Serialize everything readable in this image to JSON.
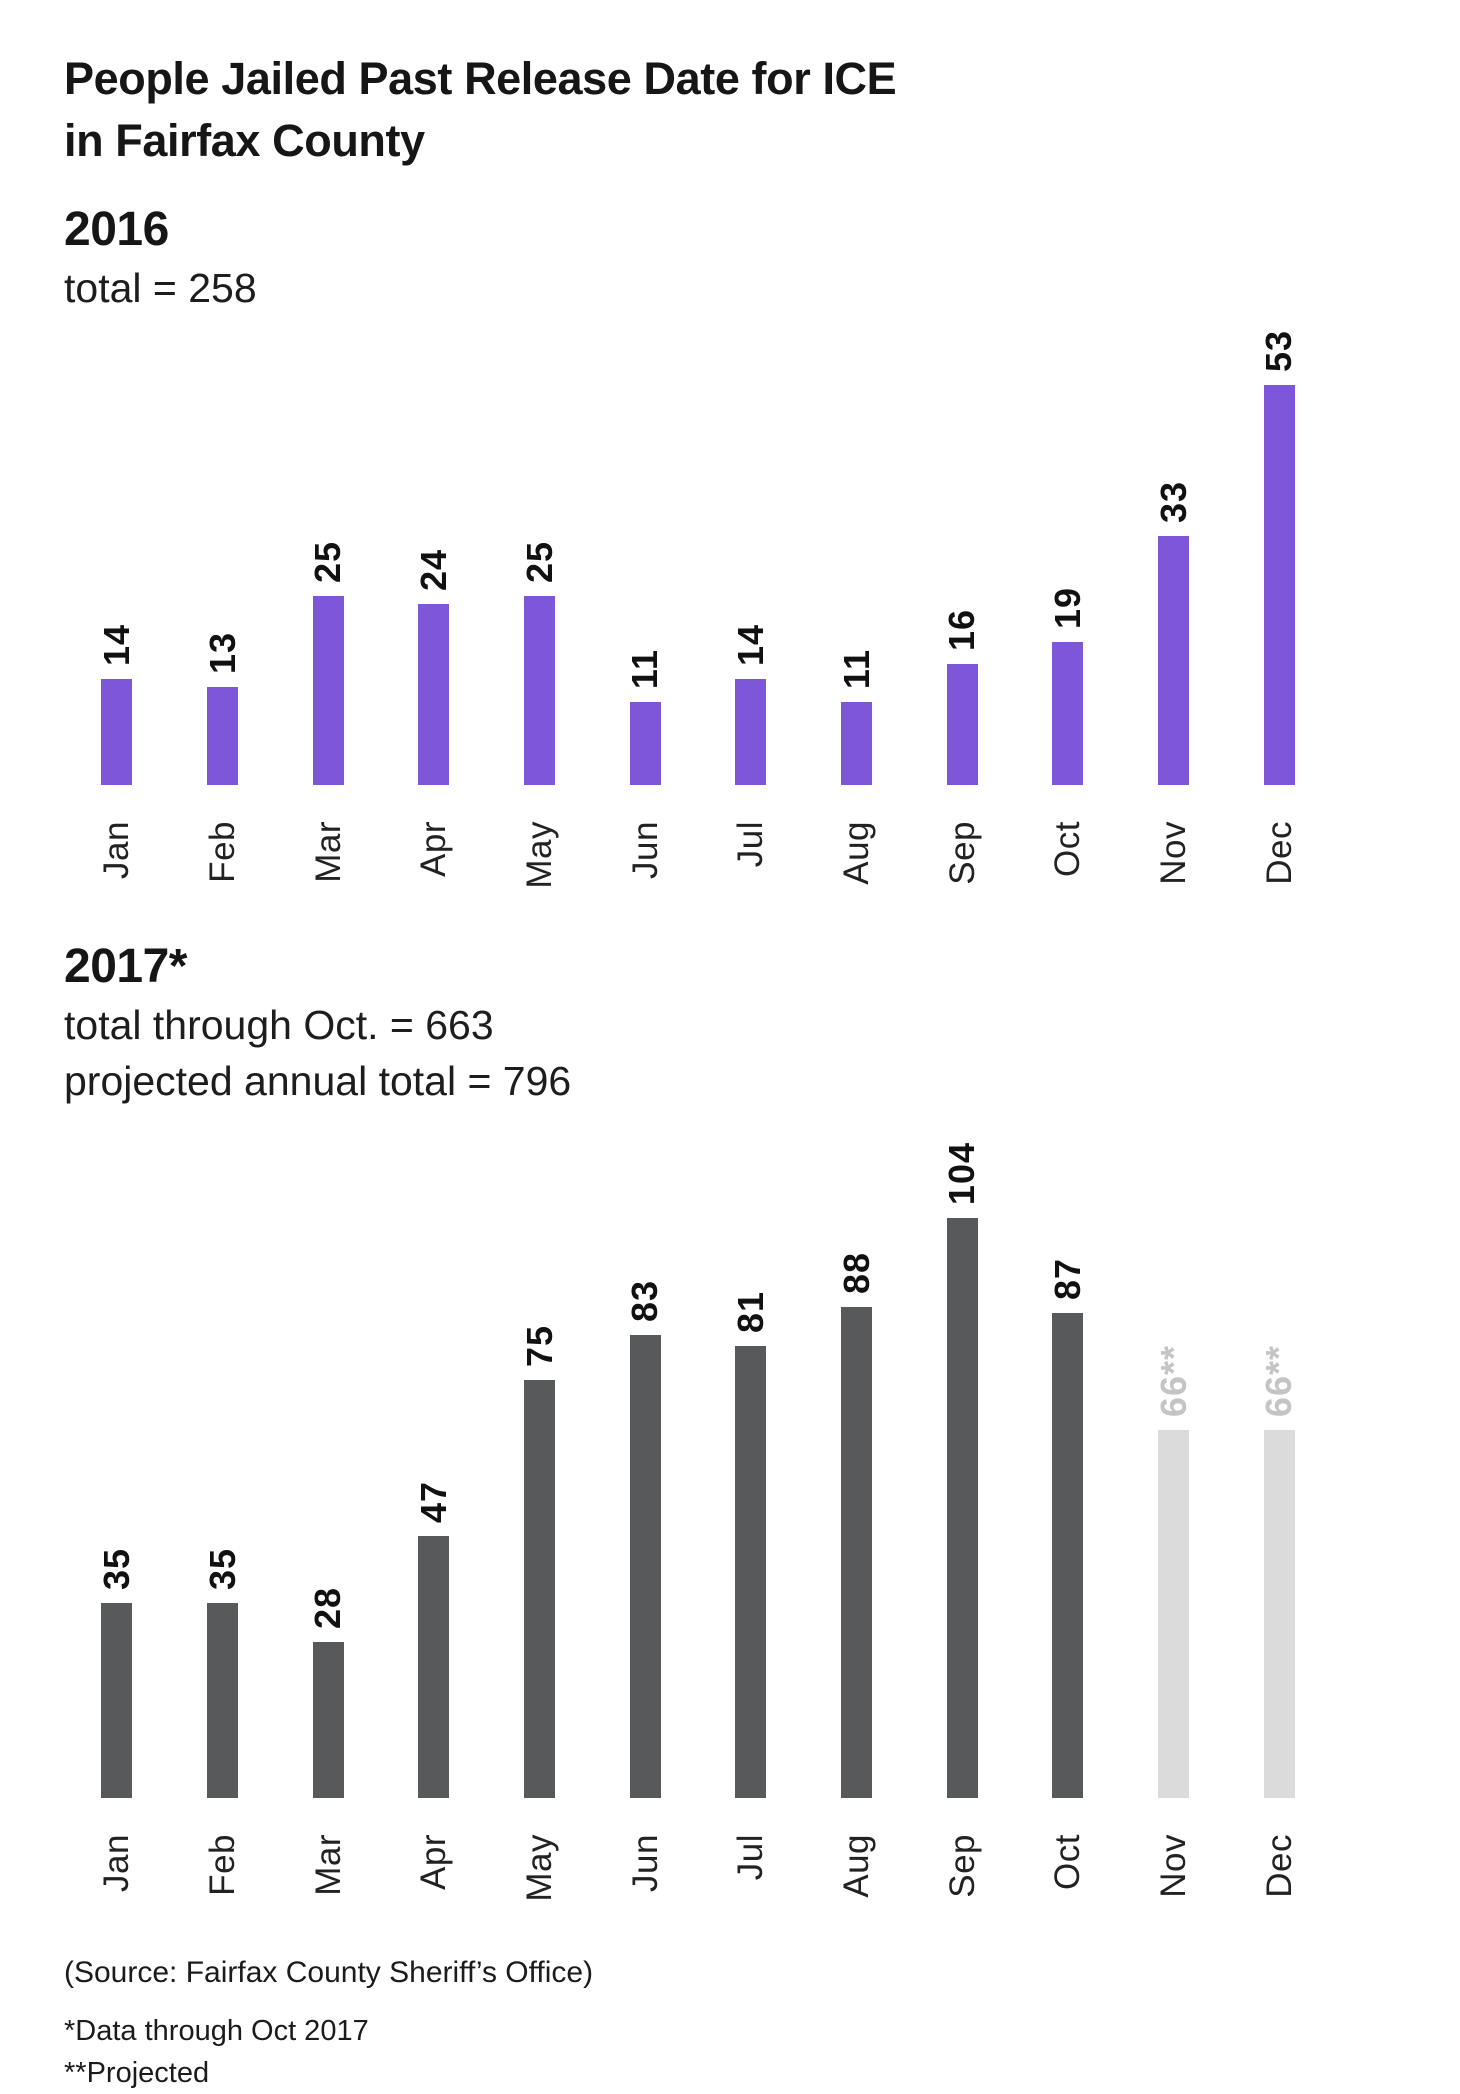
{
  "page": {
    "title_lines": [
      "People Jailed Past Release Date for ICE",
      "in Fairfax County"
    ],
    "footer": {
      "source": "(Source: Fairfax County Sheriff’s Office)",
      "note_data": "*Data through Oct 2017",
      "note_projected": "**Projected"
    }
  },
  "chart_data": [
    {
      "type": "bar",
      "title": "2016",
      "subtitle_lines": [
        "total = 258"
      ],
      "categories": [
        "Jan",
        "Feb",
        "Mar",
        "Apr",
        "May",
        "Jun",
        "Jul",
        "Aug",
        "Sep",
        "Oct",
        "Nov",
        "Dec"
      ],
      "values": [
        14,
        13,
        25,
        24,
        25,
        11,
        14,
        11,
        16,
        19,
        33,
        53
      ],
      "value_labels": [
        "14",
        "13",
        "25",
        "24",
        "25",
        "11",
        "14",
        "11",
        "16",
        "19",
        "33",
        "53"
      ],
      "projected": [
        false,
        false,
        false,
        false,
        false,
        false,
        false,
        false,
        false,
        false,
        false,
        false
      ],
      "bar_color": "#7e57d8",
      "label_color": "#111111",
      "xlabel": "",
      "ylabel": "",
      "ylim": [
        0,
        53
      ],
      "grid": false,
      "legend": "none",
      "value_label_rotation": -90,
      "tick_label_rotation": -90
    },
    {
      "type": "bar",
      "title": "2017*",
      "subtitle_lines": [
        "total through Oct. = 663",
        "projected annual total = 796"
      ],
      "categories": [
        "Jan",
        "Feb",
        "Mar",
        "Apr",
        "May",
        "Jun",
        "Jul",
        "Aug",
        "Sep",
        "Oct",
        "Nov",
        "Dec"
      ],
      "values": [
        35,
        35,
        28,
        47,
        75,
        83,
        81,
        88,
        104,
        87,
        66,
        66
      ],
      "value_labels": [
        "35",
        "35",
        "28",
        "47",
        "75",
        "83",
        "81",
        "88",
        "104",
        "87",
        "66**",
        "66**"
      ],
      "projected": [
        false,
        false,
        false,
        false,
        false,
        false,
        false,
        false,
        false,
        false,
        true,
        true
      ],
      "bar_color": "#58595b",
      "label_color": "#111111",
      "projected_bar_color": "#dbdbdb",
      "projected_label_color": "#c4c4c4",
      "xlabel": "",
      "ylabel": "",
      "ylim": [
        0,
        104
      ],
      "grid": false,
      "legend": "none",
      "value_label_rotation": -90,
      "tick_label_rotation": -90
    }
  ]
}
